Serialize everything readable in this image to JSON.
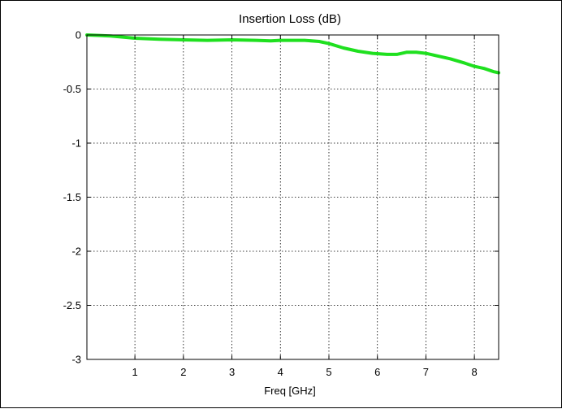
{
  "chart_data": {
    "type": "line",
    "title": "Insertion Loss (dB)",
    "xlabel": "Freq [GHz]",
    "ylabel": "",
    "xlim": [
      0.01,
      8.5
    ],
    "ylim": [
      -3,
      0
    ],
    "xticks": [
      1,
      2,
      3,
      4,
      5,
      6,
      7,
      8
    ],
    "xtick_labels": [
      "1",
      "2",
      "3",
      "4",
      "5",
      "6",
      "7",
      "8"
    ],
    "yticks": [
      0,
      -0.5,
      -1,
      -1.5,
      -2,
      -2.5,
      -3
    ],
    "ytick_labels": [
      "0",
      "-0.5",
      "-1",
      "-1.5",
      "-2",
      "-2.5",
      "-3"
    ],
    "grid": true,
    "legend": "none",
    "series": [
      {
        "color": "#1fe01f",
        "x": [
          0.01,
          0.5,
          1.0,
          1.5,
          2.0,
          2.5,
          3.0,
          3.5,
          3.8,
          4.0,
          4.5,
          4.8,
          5.0,
          5.3,
          5.6,
          5.9,
          6.2,
          6.4,
          6.6,
          6.8,
          7.0,
          7.2,
          7.5,
          7.8,
          8.0,
          8.2,
          8.4,
          8.5
        ],
        "y": [
          0.0,
          -0.01,
          -0.03,
          -0.04,
          -0.045,
          -0.05,
          -0.045,
          -0.05,
          -0.055,
          -0.05,
          -0.05,
          -0.06,
          -0.08,
          -0.12,
          -0.15,
          -0.17,
          -0.18,
          -0.18,
          -0.16,
          -0.16,
          -0.17,
          -0.19,
          -0.22,
          -0.26,
          -0.29,
          -0.31,
          -0.34,
          -0.35
        ]
      }
    ]
  }
}
